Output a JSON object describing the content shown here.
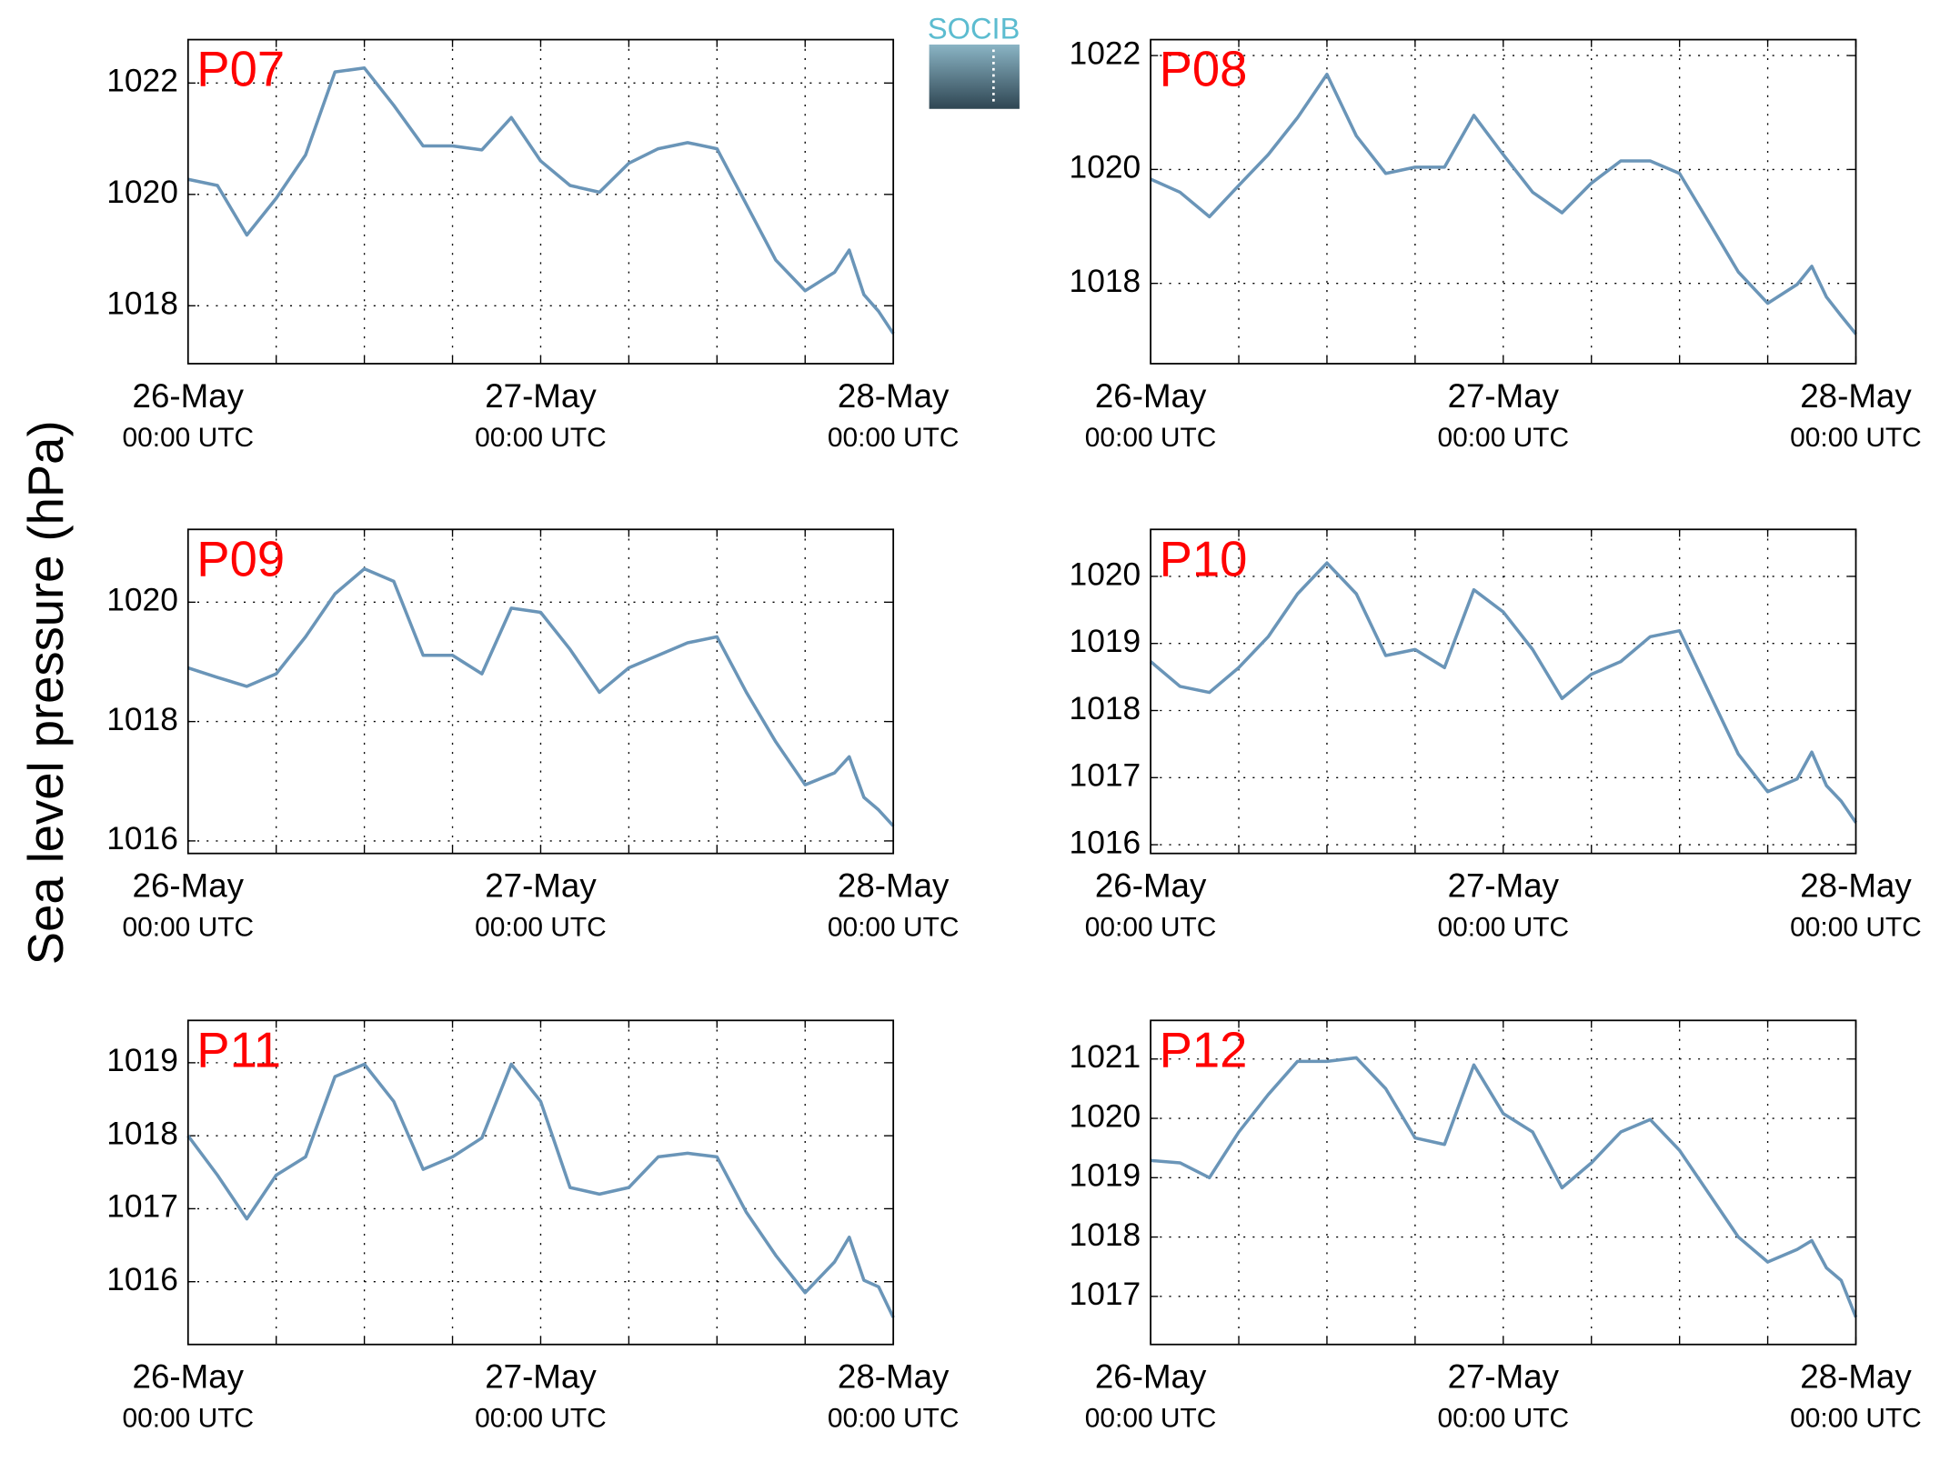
{
  "y_label": "Sea level pressure (hPa)",
  "logo": "SOCIB",
  "chart_data": [
    {
      "type": "line",
      "title": "P07",
      "color": "#6a95b8",
      "grid": true,
      "x": [
        0,
        2,
        4,
        6,
        8,
        10,
        12,
        14,
        16,
        18,
        20,
        22,
        24,
        26,
        28,
        30,
        32,
        34,
        36,
        38,
        40,
        42,
        44,
        45,
        46,
        47,
        48
      ],
      "values": [
        1020.27,
        1020.16,
        1019.27,
        1019.93,
        1020.71,
        1022.2,
        1022.27,
        1021.6,
        1020.87,
        1020.87,
        1020.8,
        1021.38,
        1020.6,
        1020.16,
        1020.04,
        1020.56,
        1020.82,
        1020.93,
        1020.82,
        1019.82,
        1018.82,
        1018.27,
        1018.6,
        1019.0,
        1018.2,
        1017.9,
        1017.5
      ],
      "xlim": [
        0,
        48
      ],
      "xticks": [
        {
          "value": 0,
          "label": "26-May",
          "sublabel": "00:00 UTC"
        },
        {
          "value": 24,
          "label": "27-May",
          "sublabel": "00:00 UTC"
        },
        {
          "value": 48,
          "label": "28-May",
          "sublabel": "00:00 UTC"
        }
      ],
      "x_minor_ticks": [
        6,
        12,
        18,
        30,
        36,
        42
      ],
      "ylim": [
        1016.96,
        1022.78
      ],
      "yticks": [
        1018,
        1020,
        1022
      ]
    },
    {
      "type": "line",
      "title": "P08",
      "color": "#6a95b8",
      "grid": true,
      "x": [
        0,
        2,
        4,
        6,
        8,
        10,
        12,
        14,
        16,
        18,
        20,
        22,
        24,
        26,
        28,
        30,
        32,
        34,
        36,
        38,
        40,
        42,
        44,
        45,
        46,
        47,
        48
      ],
      "values": [
        1019.83,
        1019.6,
        1019.17,
        1019.72,
        1020.26,
        1020.91,
        1021.67,
        1020.59,
        1019.93,
        1020.04,
        1020.04,
        1020.95,
        1020.26,
        1019.6,
        1019.24,
        1019.76,
        1020.15,
        1020.15,
        1019.93,
        1019.07,
        1018.2,
        1017.65,
        1017.98,
        1018.3,
        1017.76,
        1017.43,
        1017.11
      ],
      "xlim": [
        0,
        48
      ],
      "xticks": [
        {
          "value": 0,
          "label": "26-May",
          "sublabel": "00:00 UTC"
        },
        {
          "value": 24,
          "label": "27-May",
          "sublabel": "00:00 UTC"
        },
        {
          "value": 48,
          "label": "28-May",
          "sublabel": "00:00 UTC"
        }
      ],
      "x_minor_ticks": [
        6,
        12,
        18,
        30,
        36,
        42
      ],
      "ylim": [
        1016.59,
        1022.28
      ],
      "yticks": [
        1018,
        1020,
        1022
      ]
    },
    {
      "type": "line",
      "title": "P09",
      "color": "#6a95b8",
      "grid": true,
      "x": [
        0,
        2,
        4,
        6,
        8,
        10,
        12,
        14,
        16,
        18,
        20,
        22,
        24,
        26,
        28,
        30,
        32,
        34,
        36,
        38,
        40,
        42,
        44,
        45,
        46,
        47,
        48
      ],
      "values": [
        1018.9,
        1018.74,
        1018.59,
        1018.8,
        1019.42,
        1020.14,
        1020.56,
        1020.35,
        1019.11,
        1019.11,
        1018.8,
        1019.9,
        1019.83,
        1019.21,
        1018.49,
        1018.9,
        1019.11,
        1019.32,
        1019.42,
        1018.49,
        1017.66,
        1016.94,
        1017.14,
        1017.41,
        1016.73,
        1016.52,
        1016.25
      ],
      "xlim": [
        0,
        48
      ],
      "xticks": [
        {
          "value": 0,
          "label": "26-May",
          "sublabel": "00:00 UTC"
        },
        {
          "value": 24,
          "label": "27-May",
          "sublabel": "00:00 UTC"
        },
        {
          "value": 48,
          "label": "28-May",
          "sublabel": "00:00 UTC"
        }
      ],
      "x_minor_ticks": [
        6,
        12,
        18,
        30,
        36,
        42
      ],
      "ylim": [
        1015.79,
        1021.22
      ],
      "yticks": [
        1016,
        1018,
        1020
      ]
    },
    {
      "type": "line",
      "title": "P10",
      "color": "#6a95b8",
      "grid": true,
      "x": [
        0,
        2,
        4,
        6,
        8,
        10,
        12,
        14,
        16,
        18,
        20,
        22,
        24,
        26,
        28,
        30,
        32,
        34,
        36,
        38,
        40,
        42,
        44,
        45,
        46,
        47,
        48
      ],
      "values": [
        1018.73,
        1018.36,
        1018.27,
        1018.64,
        1019.1,
        1019.74,
        1020.2,
        1019.74,
        1018.82,
        1018.91,
        1018.64,
        1019.8,
        1019.47,
        1018.91,
        1018.18,
        1018.54,
        1018.73,
        1019.1,
        1019.19,
        1018.27,
        1017.35,
        1016.79,
        1016.98,
        1017.38,
        1016.88,
        1016.65,
        1016.33
      ],
      "xlim": [
        0,
        48
      ],
      "xticks": [
        {
          "value": 0,
          "label": "26-May",
          "sublabel": "00:00 UTC"
        },
        {
          "value": 24,
          "label": "27-May",
          "sublabel": "00:00 UTC"
        },
        {
          "value": 48,
          "label": "28-May",
          "sublabel": "00:00 UTC"
        }
      ],
      "x_minor_ticks": [
        6,
        12,
        18,
        30,
        36,
        42
      ],
      "ylim": [
        1015.87,
        1020.7
      ],
      "yticks": [
        1016,
        1017,
        1018,
        1019,
        1020
      ]
    },
    {
      "type": "line",
      "title": "P11",
      "color": "#6a95b8",
      "grid": true,
      "x": [
        0,
        2,
        4,
        6,
        8,
        10,
        12,
        14,
        16,
        18,
        20,
        22,
        24,
        26,
        28,
        30,
        32,
        34,
        36,
        38,
        40,
        42,
        44,
        45,
        46,
        47,
        48
      ],
      "values": [
        1018.0,
        1017.46,
        1016.86,
        1017.46,
        1017.71,
        1018.81,
        1018.98,
        1018.47,
        1017.54,
        1017.71,
        1017.97,
        1018.98,
        1018.47,
        1017.29,
        1017.2,
        1017.29,
        1017.71,
        1017.76,
        1017.71,
        1016.95,
        1016.36,
        1015.85,
        1016.27,
        1016.61,
        1016.02,
        1015.93,
        1015.51
      ],
      "xlim": [
        0,
        48
      ],
      "xticks": [
        {
          "value": 0,
          "label": "26-May",
          "sublabel": "00:00 UTC"
        },
        {
          "value": 24,
          "label": "27-May",
          "sublabel": "00:00 UTC"
        },
        {
          "value": 48,
          "label": "28-May",
          "sublabel": "00:00 UTC"
        }
      ],
      "x_minor_ticks": [
        6,
        12,
        18,
        30,
        36,
        42
      ],
      "ylim": [
        1015.14,
        1019.58
      ],
      "yticks": [
        1016,
        1017,
        1018,
        1019
      ]
    },
    {
      "type": "line",
      "title": "P12",
      "color": "#6a95b8",
      "grid": true,
      "x": [
        0,
        2,
        4,
        6,
        8,
        10,
        12,
        14,
        16,
        18,
        20,
        22,
        24,
        26,
        28,
        30,
        32,
        34,
        36,
        38,
        40,
        42,
        44,
        45,
        46,
        47,
        48
      ],
      "values": [
        1019.29,
        1019.25,
        1019.0,
        1019.77,
        1020.4,
        1020.96,
        1020.96,
        1021.02,
        1020.5,
        1019.67,
        1019.56,
        1020.9,
        1020.08,
        1019.77,
        1018.83,
        1019.25,
        1019.77,
        1019.98,
        1019.46,
        1018.73,
        1018.0,
        1017.58,
        1017.79,
        1017.94,
        1017.48,
        1017.27,
        1016.65
      ],
      "xlim": [
        0,
        48
      ],
      "xticks": [
        {
          "value": 0,
          "label": "26-May",
          "sublabel": "00:00 UTC"
        },
        {
          "value": 24,
          "label": "27-May",
          "sublabel": "00:00 UTC"
        },
        {
          "value": 48,
          "label": "28-May",
          "sublabel": "00:00 UTC"
        }
      ],
      "x_minor_ticks": [
        6,
        12,
        18,
        30,
        36,
        42
      ],
      "ylim": [
        1016.19,
        1021.65
      ],
      "yticks": [
        1017,
        1018,
        1019,
        1020,
        1021
      ]
    }
  ]
}
